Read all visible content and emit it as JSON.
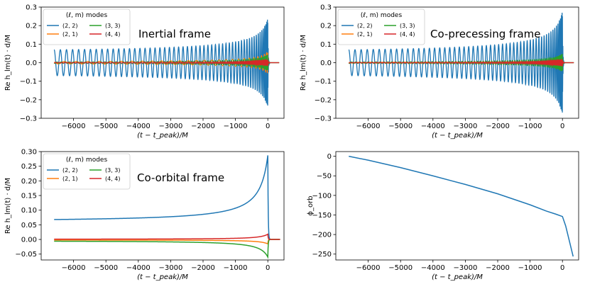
{
  "chart_data": [
    {
      "type": "line",
      "annotation": "Inertial frame",
      "xlabel": "(t − t_peak)/M",
      "ylabel": "Re h_lm(t) · d/M",
      "xlim": [
        -7000,
        500
      ],
      "ylim": [
        -0.3,
        0.3
      ],
      "xticks": [
        -6000,
        -5000,
        -4000,
        -3000,
        -2000,
        -1000,
        0
      ],
      "yticks": [
        -0.3,
        -0.2,
        -0.1,
        0.0,
        0.1,
        0.2,
        0.3
      ],
      "ytick_labels": [
        "−0.3",
        "−0.2",
        "−0.1",
        "0.0",
        "0.1",
        "0.2",
        "0.3"
      ],
      "legend_title": "(ℓ, m) modes",
      "legend_position": "top-left",
      "series": [
        {
          "name": "(2, 2)",
          "color": "#1f77b4",
          "kind": "oscillation",
          "amp_start": 0.07,
          "amp_peak": 0.245,
          "cycles": 55
        },
        {
          "name": "(2, 1)",
          "color": "#ff7f0e",
          "kind": "oscillation",
          "amp_start": 0.006,
          "amp_peak": 0.06,
          "cycles": 28
        },
        {
          "name": "(3, 3)",
          "color": "#2ca02c",
          "kind": "oscillation",
          "amp_start": 0.004,
          "amp_peak": 0.045,
          "cycles": 82
        },
        {
          "name": "(4, 4)",
          "color": "#d62728",
          "kind": "oscillation",
          "amp_start": 0.002,
          "amp_peak": 0.02,
          "cycles": 110
        }
      ]
    },
    {
      "type": "line",
      "annotation": "Co-precessing frame",
      "xlabel": "(t − t_peak)/M",
      "ylabel": "Re h_lm(t) · d/M",
      "xlim": [
        -7000,
        500
      ],
      "ylim": [
        -0.3,
        0.3
      ],
      "xticks": [
        -6000,
        -5000,
        -4000,
        -3000,
        -2000,
        -1000,
        0
      ],
      "yticks": [
        -0.3,
        -0.2,
        -0.1,
        0.0,
        0.1,
        0.2,
        0.3
      ],
      "ytick_labels": [
        "−0.3",
        "−0.2",
        "−0.1",
        "0.0",
        "0.1",
        "0.2",
        "0.3"
      ],
      "legend_title": "(ℓ, m) modes",
      "legend_position": "top-left",
      "series": [
        {
          "name": "(2, 2)",
          "color": "#1f77b4",
          "kind": "oscillation",
          "amp_start": 0.07,
          "amp_peak": 0.285,
          "cycles": 55
        },
        {
          "name": "(2, 1)",
          "color": "#ff7f0e",
          "kind": "oscillation",
          "amp_start": 0.002,
          "amp_peak": 0.02,
          "cycles": 28
        },
        {
          "name": "(3, 3)",
          "color": "#2ca02c",
          "kind": "oscillation",
          "amp_start": 0.004,
          "amp_peak": 0.05,
          "cycles": 82
        },
        {
          "name": "(4, 4)",
          "color": "#d62728",
          "kind": "oscillation",
          "amp_start": 0.002,
          "amp_peak": 0.022,
          "cycles": 110
        }
      ]
    },
    {
      "type": "line",
      "annotation": "Co-orbital frame",
      "xlabel": "(t − t_peak)/M",
      "ylabel": "Re h_lm(t) · d/M",
      "xlim": [
        -7000,
        500
      ],
      "ylim": [
        -0.07,
        0.3
      ],
      "xticks": [
        -6000,
        -5000,
        -4000,
        -3000,
        -2000,
        -1000,
        0
      ],
      "yticks": [
        -0.05,
        0.0,
        0.05,
        0.1,
        0.15,
        0.2,
        0.25,
        0.3
      ],
      "ytick_labels": [
        "−0.05",
        "0.00",
        "0.05",
        "0.10",
        "0.15",
        "0.20",
        "0.25",
        "0.30"
      ],
      "legend_title": "(ℓ, m) modes",
      "legend_position": "top-left",
      "series": [
        {
          "name": "(2, 2)",
          "color": "#1f77b4",
          "kind": "smooth",
          "start": 0.068,
          "peak": 0.287,
          "end": 0.0
        },
        {
          "name": "(2, 1)",
          "color": "#ff7f0e",
          "kind": "smooth",
          "start": -0.002,
          "peak": -0.015,
          "end": 0.0
        },
        {
          "name": "(3, 3)",
          "color": "#2ca02c",
          "kind": "smooth",
          "start": -0.006,
          "peak": -0.06,
          "end": 0.0
        },
        {
          "name": "(4, 4)",
          "color": "#d62728",
          "kind": "smooth",
          "start": 0.001,
          "peak": 0.018,
          "end": 0.0
        }
      ]
    },
    {
      "type": "line",
      "annotation": "",
      "xlabel": "(t − t_peak)/M",
      "ylabel": "ϕ_orb",
      "xlim": [
        -7000,
        500
      ],
      "ylim": [
        -265,
        12
      ],
      "xticks": [
        -6000,
        -5000,
        -4000,
        -3000,
        -2000,
        -1000,
        0
      ],
      "yticks": [
        -250,
        -200,
        -150,
        -100,
        -50,
        0
      ],
      "ytick_labels": [
        "−250",
        "−200",
        "−150",
        "−100",
        "−50",
        "0"
      ],
      "legend_title": "",
      "legend_position": "none",
      "series": [
        {
          "name": "phase",
          "color": "#1f77b4",
          "kind": "points",
          "x": [
            -6600,
            -6000,
            -5000,
            -4000,
            -3000,
            -2000,
            -1000,
            -500,
            -200,
            0,
            100,
            200,
            330
          ],
          "y": [
            0,
            -10,
            -29,
            -50,
            -72,
            -96,
            -124,
            -140,
            -148,
            -154,
            -178,
            -212,
            -256
          ]
        }
      ]
    }
  ],
  "tick_labels_x": [
    "−6000",
    "−5000",
    "−4000",
    "−3000",
    "−2000",
    "−1000",
    "0"
  ]
}
